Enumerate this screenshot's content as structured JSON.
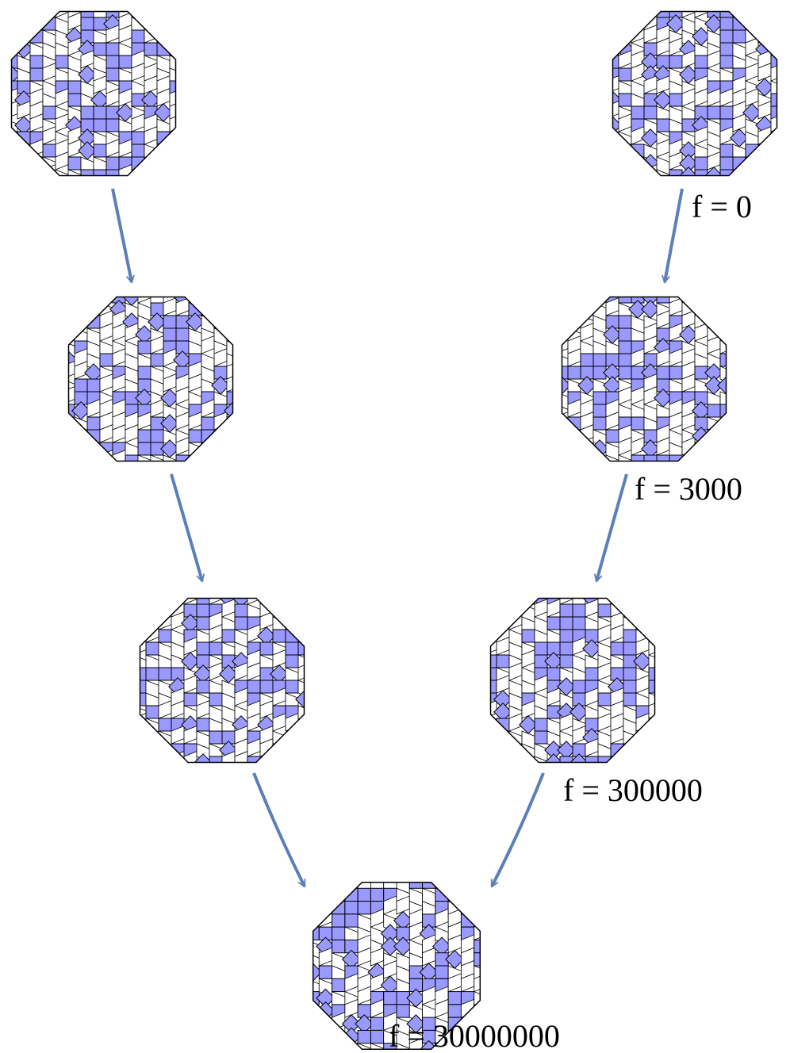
{
  "labels": [
    "f = 0",
    "f = 3000",
    "f = 300000",
    "f = 30000000"
  ]
}
